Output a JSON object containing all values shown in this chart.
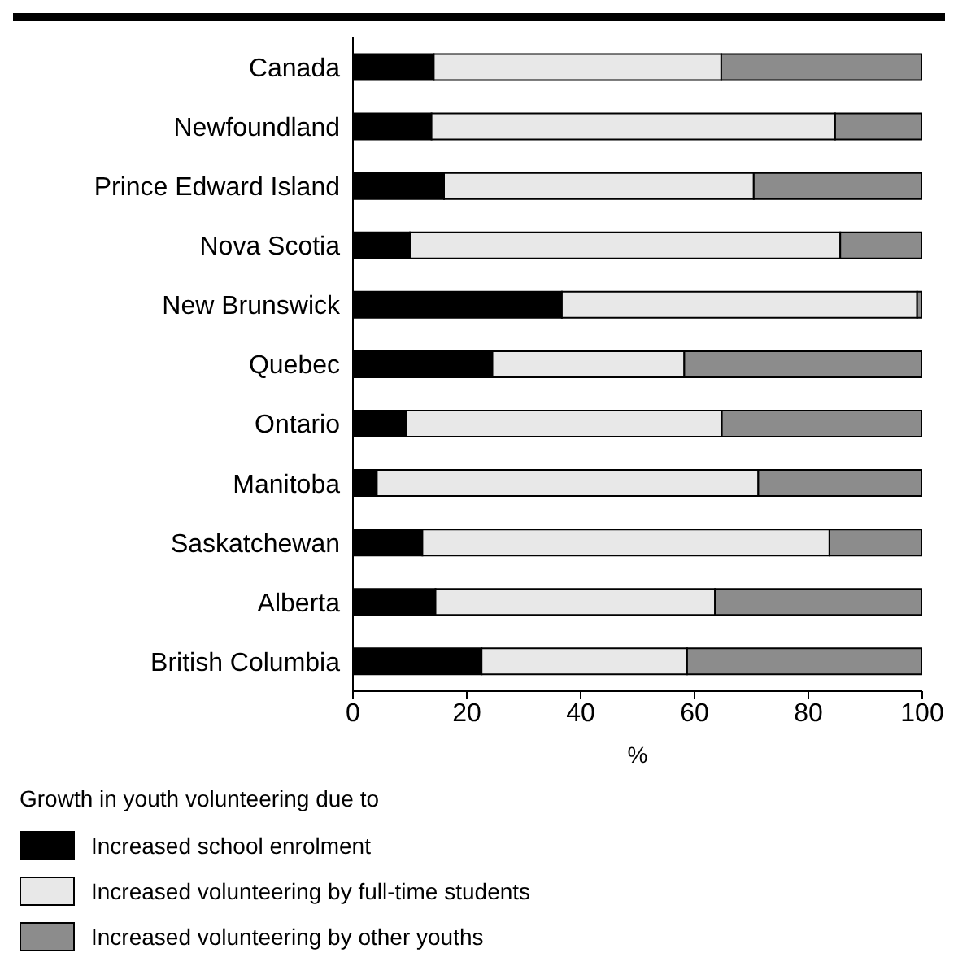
{
  "chart_data": {
    "type": "bar",
    "orientation": "horizontal",
    "stacked": true,
    "xlabel": "%",
    "legend_title": "Growth in youth volunteering due to",
    "categories": [
      "Canada",
      "Newfoundland",
      "Prince Edward Island",
      "Nova Scotia",
      "New Brunswick",
      "Quebec",
      "Ontario",
      "Manitoba",
      "Saskatchewan",
      "Alberta",
      "British Columbia"
    ],
    "series": [
      {
        "name": "Increased school enrolment",
        "color": "#000000",
        "values": [
          14.2,
          13.8,
          16.0,
          10.0,
          36.7,
          24.5,
          9.3,
          4.2,
          12.2,
          14.5,
          22.6
        ]
      },
      {
        "name": "Increased volunteering by full-time students",
        "color": "#e8e8e8",
        "values": [
          50.5,
          70.9,
          54.4,
          75.6,
          62.4,
          33.7,
          55.5,
          67.0,
          71.5,
          49.1,
          36.1
        ]
      },
      {
        "name": "Increased volunteering by other youths",
        "color": "#8c8c8c",
        "values": [
          35.3,
          15.3,
          29.6,
          14.4,
          0.9,
          41.8,
          35.2,
          28.8,
          16.3,
          36.4,
          41.3
        ]
      }
    ],
    "xlim": [
      0,
      100
    ],
    "xticks": [
      0,
      20,
      40,
      60,
      80,
      100
    ],
    "grid": false,
    "legend": "bottom"
  }
}
